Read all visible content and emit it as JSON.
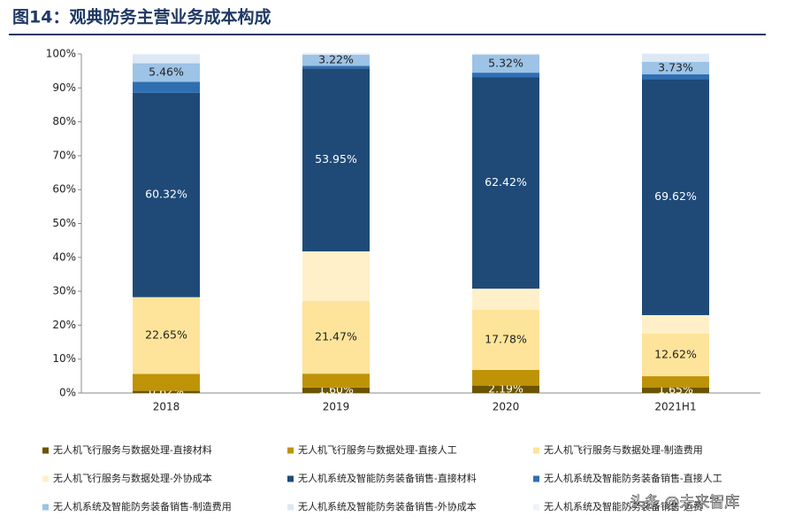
{
  "chart_data": {
    "type": "stacked_bar",
    "title": "图14：观典防务主营业务成本构成",
    "categories": [
      "2018",
      "2019",
      "2020",
      "2021H1"
    ],
    "ylim": [
      0,
      100
    ],
    "yticks": [
      {
        "value": 0,
        "label": "0%"
      },
      {
        "value": 10,
        "label": "10%"
      },
      {
        "value": 20,
        "label": "20%"
      },
      {
        "value": 30,
        "label": "30%"
      },
      {
        "value": 40,
        "label": "40%"
      },
      {
        "value": 50,
        "label": "50%"
      },
      {
        "value": 60,
        "label": "60%"
      },
      {
        "value": 70,
        "label": "70%"
      },
      {
        "value": 80,
        "label": "80%"
      },
      {
        "value": 90,
        "label": "90%"
      },
      {
        "value": 100,
        "label": "100%"
      }
    ],
    "series": [
      {
        "name": "无人机飞行服务与数据处理-直接材料",
        "color": "#6b5400",
        "values": [
          0.62,
          1.6,
          2.19,
          1.65
        ],
        "value_labels": [
          "0.62%",
          "1.60%",
          "2.19%",
          "1.65%"
        ]
      },
      {
        "name": "无人机飞行服务与数据处理-直接人工",
        "color": "#bf9308",
        "values": [
          5.0,
          4.1,
          4.6,
          3.3
        ]
      },
      {
        "name": "无人机飞行服务与数据处理-制造费用",
        "color": "#fee49a",
        "values": [
          22.65,
          21.47,
          17.78,
          12.62
        ],
        "value_labels": [
          "22.65%",
          "21.47%",
          "17.78%",
          "12.62%"
        ]
      },
      {
        "name": "无人机飞行服务与数据处理-外协成本",
        "color": "#fff0c9",
        "values": [
          0,
          14.6,
          6.2,
          5.4
        ]
      },
      {
        "name": "无人机系统及智能防务装备销售-直接材料",
        "color": "#1f4a78",
        "values": [
          60.32,
          53.95,
          62.42,
          69.62
        ],
        "value_labels": [
          "60.32%",
          "53.95%",
          "62.42%",
          "69.62%"
        ]
      },
      {
        "name": "无人机系统及智能防务装备销售-直接人工",
        "color": "#2e6fb3",
        "values": [
          3.2,
          0.8,
          1.3,
          1.4
        ]
      },
      {
        "name": "无人机系统及智能防务装备销售-制造费用",
        "color": "#9dc3e6",
        "values": [
          5.46,
          3.22,
          5.32,
          3.73
        ],
        "value_labels": [
          "5.46%",
          "3.22%",
          "5.32%",
          "3.73%"
        ]
      },
      {
        "name": "无人机系统及智能防务装备销售-外协成本",
        "color": "#dce8f5",
        "values": [
          2.6,
          0.4,
          0.2,
          2.3
        ]
      },
      {
        "name": "无人机系统及智能防务装备销售-运费",
        "color": "#eef3f9",
        "values": [
          0.2,
          0.2,
          0.2,
          0.2
        ]
      }
    ],
    "watermark": "头条 @未来智库"
  }
}
